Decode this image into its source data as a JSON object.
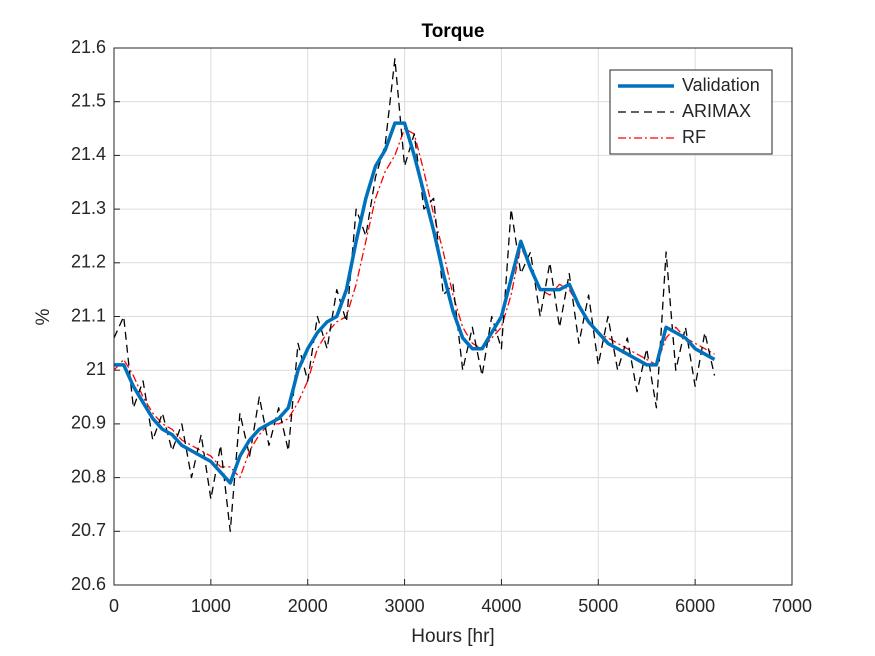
{
  "chart_data": {
    "type": "line",
    "title": "Torque",
    "xlabel": "Hours [hr]",
    "ylabel": "%",
    "x": [
      0,
      100,
      200,
      300,
      400,
      500,
      600,
      700,
      800,
      900,
      1000,
      1100,
      1200,
      1300,
      1400,
      1500,
      1600,
      1700,
      1800,
      1900,
      2000,
      2100,
      2200,
      2300,
      2400,
      2500,
      2600,
      2700,
      2800,
      2900,
      3000,
      3100,
      3200,
      3300,
      3400,
      3500,
      3600,
      3700,
      3800,
      3900,
      4000,
      4100,
      4200,
      4300,
      4400,
      4500,
      4600,
      4700,
      4800,
      4900,
      5000,
      5100,
      5200,
      5300,
      5400,
      5500,
      5600,
      5700,
      5800,
      5900,
      6000,
      6100,
      6200
    ],
    "series": [
      {
        "name": "Validation",
        "color": "#0072bd",
        "style": "solid",
        "values": [
          21.01,
          21.01,
          20.97,
          20.94,
          20.91,
          20.89,
          20.88,
          20.86,
          20.85,
          20.84,
          20.83,
          20.81,
          20.79,
          20.84,
          20.87,
          20.89,
          20.9,
          20.91,
          20.93,
          21.0,
          21.04,
          21.07,
          21.09,
          21.1,
          21.15,
          21.24,
          21.32,
          21.38,
          21.41,
          21.46,
          21.46,
          21.4,
          21.33,
          21.26,
          21.18,
          21.11,
          21.06,
          21.04,
          21.04,
          21.07,
          21.1,
          21.17,
          21.24,
          21.19,
          21.15,
          21.15,
          21.15,
          21.16,
          21.12,
          21.09,
          21.07,
          21.05,
          21.04,
          21.03,
          21.02,
          21.01,
          21.01,
          21.08,
          21.07,
          21.06,
          21.04,
          21.03,
          21.02
        ]
      },
      {
        "name": "ARIMAX",
        "color": "#000000",
        "style": "dashed",
        "values": [
          21.06,
          21.1,
          20.93,
          20.98,
          20.87,
          20.92,
          20.85,
          20.9,
          20.8,
          20.88,
          20.76,
          20.86,
          20.7,
          20.92,
          20.84,
          20.95,
          20.86,
          20.93,
          20.85,
          21.05,
          20.98,
          21.1,
          21.04,
          21.15,
          21.09,
          21.3,
          21.25,
          21.36,
          21.42,
          21.58,
          21.38,
          21.44,
          21.3,
          21.32,
          21.14,
          21.16,
          21.0,
          21.08,
          20.99,
          21.1,
          21.04,
          21.3,
          21.18,
          21.22,
          21.1,
          21.2,
          21.08,
          21.18,
          21.05,
          21.14,
          21.01,
          21.1,
          21.0,
          21.06,
          20.96,
          21.04,
          20.93,
          21.22,
          21.0,
          21.08,
          20.97,
          21.07,
          20.99
        ]
      },
      {
        "name": "RF",
        "color": "#ff0000",
        "style": "dashdot",
        "values": [
          21.0,
          21.02,
          20.99,
          20.95,
          20.92,
          20.9,
          20.89,
          20.87,
          20.86,
          20.85,
          20.84,
          20.82,
          20.82,
          20.8,
          20.85,
          20.88,
          20.9,
          20.9,
          20.91,
          20.94,
          20.98,
          21.04,
          21.07,
          21.09,
          21.1,
          21.16,
          21.24,
          21.32,
          21.37,
          21.4,
          21.45,
          21.44,
          21.37,
          21.29,
          21.22,
          21.14,
          21.08,
          21.05,
          21.04,
          21.06,
          21.08,
          21.14,
          21.23,
          21.19,
          21.15,
          21.14,
          21.16,
          21.15,
          21.12,
          21.09,
          21.07,
          21.06,
          21.05,
          21.04,
          21.03,
          21.02,
          21.01,
          21.06,
          21.08,
          21.06,
          21.05,
          21.04,
          21.03
        ]
      }
    ],
    "xlim": [
      0,
      7000
    ],
    "xticks": [
      0,
      1000,
      2000,
      3000,
      4000,
      5000,
      6000,
      7000
    ],
    "ylim": [
      20.6,
      21.6
    ],
    "yticks": [
      20.6,
      20.7,
      20.8,
      20.9,
      21,
      21.1,
      21.2,
      21.3,
      21.4,
      21.5,
      21.6
    ],
    "grid": true,
    "legend": "northeast"
  }
}
